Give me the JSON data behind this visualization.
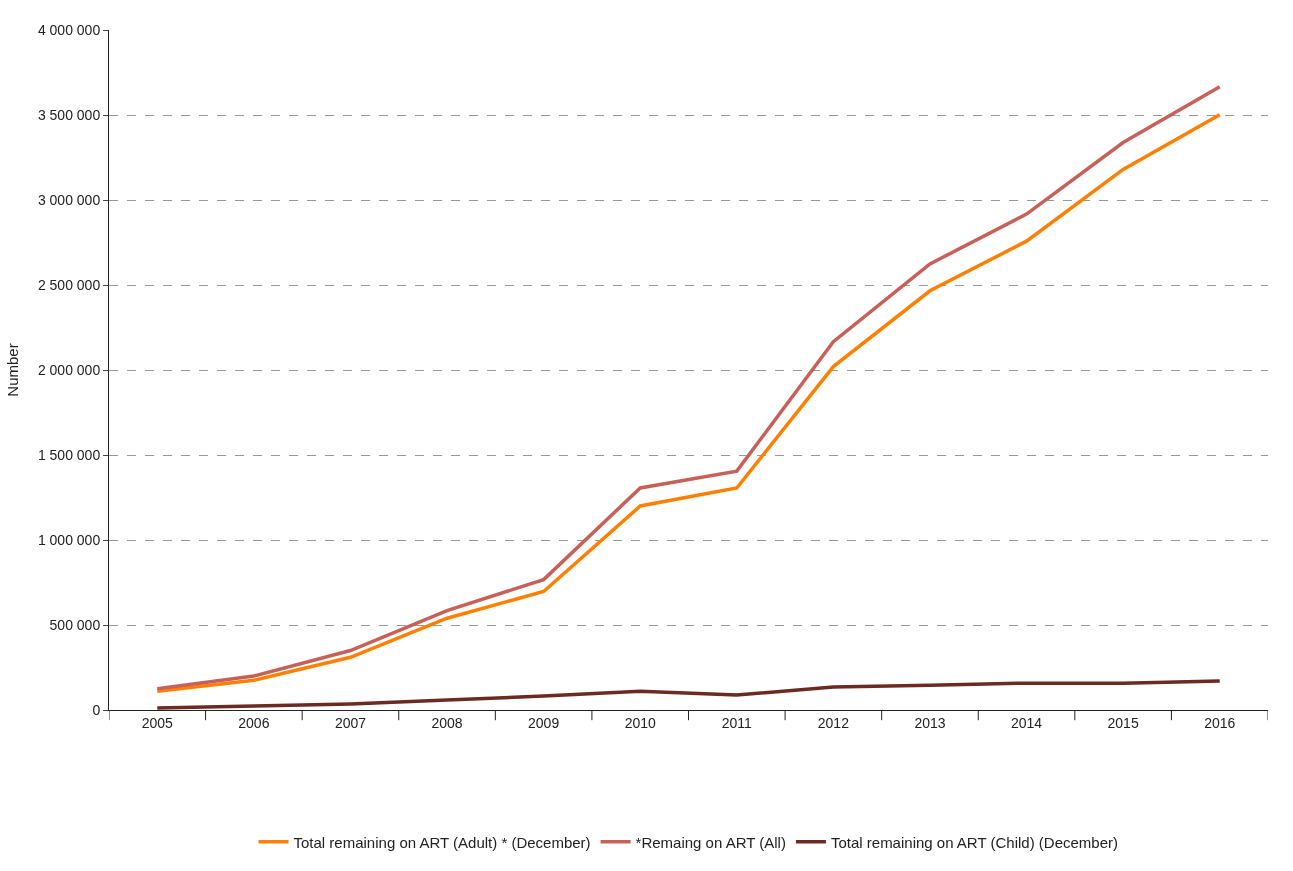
{
  "chart_data": {
    "type": "line",
    "ylabel": "Number",
    "categories": [
      "2005",
      "2006",
      "2007",
      "2008",
      "2009",
      "2010",
      "2011",
      "2012",
      "2013",
      "2014",
      "2015",
      "2016"
    ],
    "series": [
      {
        "name": "Total remaining on ART (Adult) * (December)",
        "color": "#ff8000",
        "values": [
          110000,
          175000,
          310000,
          540000,
          697000,
          1200000,
          1306000,
          2020000,
          2466000,
          2758000,
          3180000,
          3502000
        ]
      },
      {
        "name": "*Remaing on ART (All)",
        "color": "#c8605a",
        "values": [
          125000,
          200000,
          350000,
          585000,
          767000,
          1306000,
          1405000,
          2167000,
          2624000,
          2917000,
          3338000,
          3666000
        ]
      },
      {
        "name": "Total remaining on ART (Child) (December)",
        "color": "#6b2a22",
        "values": [
          12000,
          23000,
          35000,
          59000,
          82000,
          111000,
          88000,
          135000,
          146000,
          158000,
          158000,
          170000
        ]
      }
    ],
    "ylim": [
      0,
      4000000
    ],
    "yticks": [
      {
        "value": 0,
        "label": "0"
      },
      {
        "value": 500000,
        "label": "500 000"
      },
      {
        "value": 1000000,
        "label": "1 000 000"
      },
      {
        "value": 1500000,
        "label": "1 500 000"
      },
      {
        "value": 2000000,
        "label": "2 000 000"
      },
      {
        "value": 2500000,
        "label": "2 500 000"
      },
      {
        "value": 3000000,
        "label": "3 000 000"
      },
      {
        "value": 3500000,
        "label": "3 500 000"
      },
      {
        "value": 4000000,
        "label": "4 000 000"
      }
    ],
    "grid": "y",
    "legend": "bottom",
    "marker": "none",
    "line_style": "solid"
  }
}
